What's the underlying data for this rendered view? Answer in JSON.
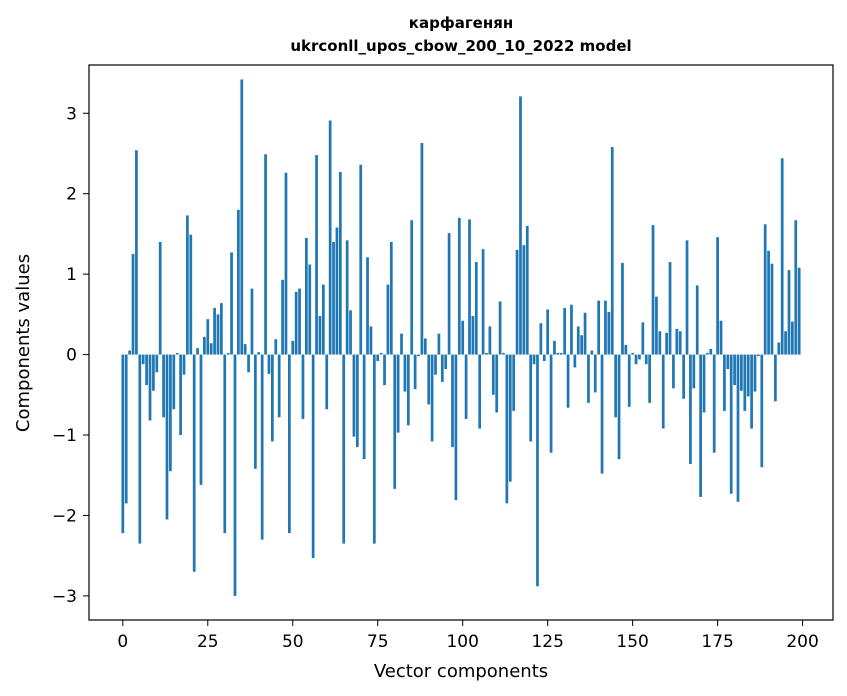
{
  "colors": {
    "bar": "#1f77b4",
    "axis": "#000000",
    "background": "#ffffff"
  },
  "chart_data": {
    "type": "bar",
    "title_line1": "карфагенян",
    "title_line2": "ukrconll_upos_cbow_200_10_2022 model",
    "xlabel": "Vector components",
    "ylabel": "Components values",
    "xlim": [
      -9.95,
      208.95
    ],
    "ylim": [
      -3.3,
      3.6
    ],
    "xticks": [
      0,
      25,
      50,
      75,
      100,
      125,
      150,
      175,
      200
    ],
    "xtick_labels": [
      "0",
      "25",
      "50",
      "75",
      "100",
      "125",
      "150",
      "175",
      "200"
    ],
    "yticks": [
      -3,
      -2,
      -1,
      0,
      1,
      2,
      3
    ],
    "ytick_labels": [
      "−3",
      "−2",
      "−1",
      "0",
      "1",
      "2",
      "3"
    ],
    "grid": false,
    "legend": "none",
    "values": [
      -2.22,
      -1.85,
      0.05,
      1.25,
      2.54,
      -2.35,
      -0.12,
      -0.38,
      -0.82,
      -0.45,
      -0.22,
      1.4,
      -0.78,
      -2.05,
      -1.45,
      -0.68,
      0.02,
      -1.0,
      -0.25,
      1.73,
      1.49,
      -2.7,
      0.08,
      -1.62,
      0.22,
      0.44,
      0.14,
      0.58,
      0.5,
      0.64,
      -2.22,
      0.02,
      1.27,
      -3.0,
      1.8,
      3.42,
      0.13,
      -0.22,
      0.82,
      -1.42,
      0.03,
      -2.3,
      2.49,
      -0.24,
      -1.08,
      0.19,
      -0.78,
      0.93,
      2.26,
      -2.22,
      0.17,
      0.78,
      0.82,
      -0.8,
      1.45,
      1.12,
      -2.53,
      2.48,
      0.48,
      0.87,
      -0.68,
      2.91,
      1.4,
      1.58,
      2.27,
      -2.35,
      1.42,
      0.55,
      -1.02,
      -1.15,
      2.36,
      -1.3,
      1.21,
      0.35,
      -2.35,
      -0.08,
      0.02,
      -0.38,
      0.87,
      1.4,
      -1.67,
      -0.97,
      0.26,
      -0.46,
      -0.88,
      1.67,
      -0.43,
      -0.02,
      2.63,
      0.2,
      -0.62,
      -1.08,
      -0.25,
      0.26,
      -0.34,
      -0.18,
      1.51,
      -1.15,
      -1.81,
      1.7,
      0.42,
      -0.8,
      1.68,
      0.48,
      1.15,
      -0.92,
      1.31,
      0.02,
      0.35,
      -0.5,
      -0.72,
      0.66,
      0.02,
      -1.85,
      -1.58,
      -0.7,
      1.3,
      3.21,
      1.36,
      1.6,
      -1.08,
      -0.12,
      -2.88,
      0.39,
      -0.08,
      0.56,
      -1.22,
      0.17,
      0.02,
      0.02,
      0.58,
      -0.66,
      0.62,
      -0.16,
      0.35,
      0.24,
      0.52,
      -0.6,
      0.05,
      -0.47,
      0.67,
      -1.48,
      0.67,
      0.53,
      2.58,
      -0.78,
      -1.3,
      1.14,
      0.12,
      -0.65,
      0.02,
      -0.12,
      -0.06,
      0.4,
      -0.12,
      -0.6,
      1.61,
      0.72,
      0.29,
      -0.92,
      0.27,
      1.15,
      -0.42,
      0.32,
      0.29,
      -0.55,
      1.42,
      -1.36,
      -0.42,
      0.86,
      -1.77,
      -0.72,
      0.02,
      0.07,
      -1.22,
      1.46,
      0.42,
      -0.7,
      -0.18,
      -1.73,
      -0.38,
      -1.83,
      -0.45,
      -0.7,
      -0.52,
      -0.92,
      -0.46,
      -0.02,
      -1.4,
      1.62,
      1.29,
      1.13,
      -0.58,
      0.15,
      2.44,
      0.29,
      1.05,
      0.41,
      1.67,
      1.08
    ]
  }
}
